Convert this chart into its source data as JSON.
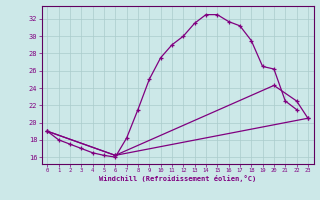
{
  "xlabel": "Windchill (Refroidissement éolien,°C)",
  "background_color": "#cce8e8",
  "grid_color": "#aacccc",
  "line_color": "#800080",
  "x_ticks": [
    0,
    1,
    2,
    3,
    4,
    5,
    6,
    7,
    8,
    9,
    10,
    11,
    12,
    13,
    14,
    15,
    16,
    17,
    18,
    19,
    20,
    21,
    22,
    23
  ],
  "y_ticks": [
    16,
    18,
    20,
    22,
    24,
    26,
    28,
    30,
    32
  ],
  "ylim": [
    15.2,
    33.5
  ],
  "xlim": [
    -0.5,
    23.5
  ],
  "line1_x": [
    0,
    1,
    2,
    3,
    4,
    5,
    6,
    7,
    8,
    9,
    10,
    11,
    12,
    13,
    14,
    15,
    16,
    17,
    18,
    19,
    20,
    21,
    22
  ],
  "line1_y": [
    19.0,
    18.0,
    17.5,
    17.0,
    16.5,
    16.2,
    16.0,
    18.2,
    21.5,
    25.0,
    27.5,
    29.0,
    30.0,
    31.5,
    32.5,
    32.5,
    31.7,
    31.2,
    29.5,
    26.5,
    26.2,
    22.5,
    21.5
  ],
  "line2_x": [
    0,
    6,
    20,
    22,
    23
  ],
  "line2_y": [
    19.0,
    16.2,
    24.3,
    22.5,
    20.5
  ],
  "line3_x": [
    0,
    6,
    23
  ],
  "line3_y": [
    19.0,
    16.2,
    20.5
  ]
}
